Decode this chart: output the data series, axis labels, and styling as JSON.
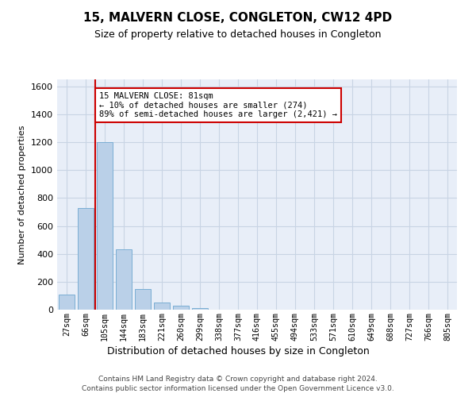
{
  "title": "15, MALVERN CLOSE, CONGLETON, CW12 4PD",
  "subtitle": "Size of property relative to detached houses in Congleton",
  "xlabel": "Distribution of detached houses by size in Congleton",
  "ylabel": "Number of detached properties",
  "categories": [
    "27sqm",
    "66sqm",
    "105sqm",
    "144sqm",
    "183sqm",
    "221sqm",
    "260sqm",
    "299sqm",
    "338sqm",
    "377sqm",
    "416sqm",
    "455sqm",
    "494sqm",
    "533sqm",
    "571sqm",
    "610sqm",
    "649sqm",
    "688sqm",
    "727sqm",
    "766sqm",
    "805sqm"
  ],
  "values": [
    110,
    730,
    1200,
    430,
    150,
    50,
    30,
    10,
    2,
    0,
    0,
    0,
    0,
    0,
    0,
    0,
    0,
    0,
    0,
    0,
    0
  ],
  "bar_color": "#bad0e8",
  "bar_edge_color": "#7aaed4",
  "grid_color": "#c8d4e4",
  "background_color": "#e8eef8",
  "vline_x": 1.5,
  "vline_color": "#cc0000",
  "annotation_text": "15 MALVERN CLOSE: 81sqm\n← 10% of detached houses are smaller (274)\n89% of semi-detached houses are larger (2,421) →",
  "annotation_box_color": "#cc0000",
  "ylim": [
    0,
    1650
  ],
  "yticks": [
    0,
    200,
    400,
    600,
    800,
    1000,
    1200,
    1400,
    1600
  ],
  "footer_line1": "Contains HM Land Registry data © Crown copyright and database right 2024.",
  "footer_line2": "Contains public sector information licensed under the Open Government Licence v3.0."
}
